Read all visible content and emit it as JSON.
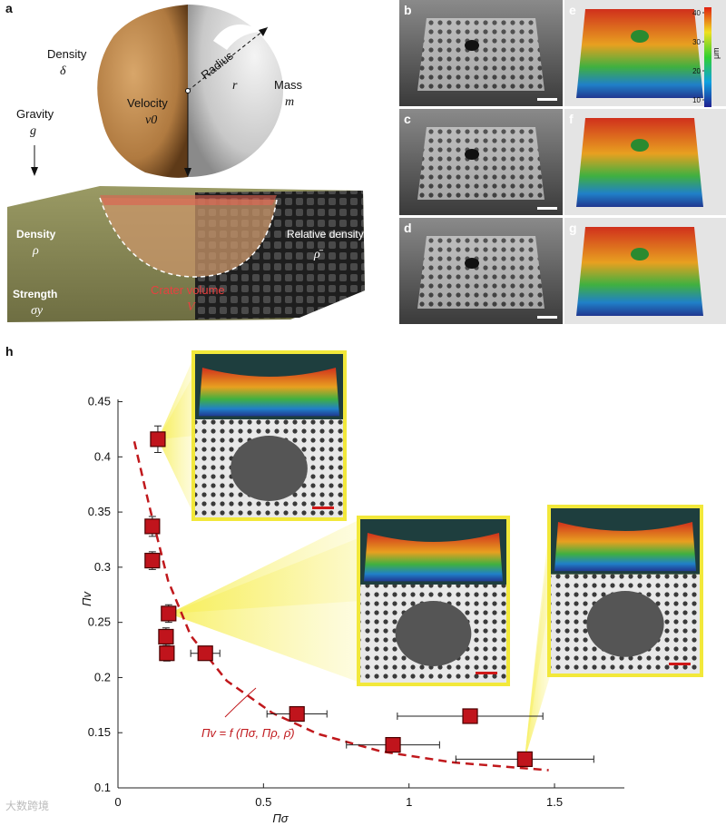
{
  "panels": {
    "a": "a",
    "b": "b",
    "c": "c",
    "d": "d",
    "e": "e",
    "f": "f",
    "g": "g",
    "h": "h"
  },
  "illustration": {
    "density_top": "Density",
    "delta": "δ",
    "velocity": "Velocity",
    "v0": "v0",
    "radius": "Radius",
    "r": "r",
    "mass": "Mass",
    "m": "m",
    "gravity": "Gravity",
    "g": "g",
    "density_bottom": "Density",
    "rho": "ρ",
    "strength": "Strength",
    "sigma_y": "σy",
    "relative_density": "Relative density",
    "rho_bar": "ρ̄",
    "crater_volume": "Crater volume",
    "V": "V"
  },
  "colorbar": {
    "unit": "μm",
    "ticks": [
      10,
      20,
      30,
      40
    ]
  },
  "watermark": "大数跨境",
  "chart_data": {
    "type": "scatter",
    "xlabel": "Πσ",
    "ylabel": "Πv",
    "xlim": [
      0,
      1.74
    ],
    "ylim": [
      0.1,
      0.485
    ],
    "xticks": [
      0,
      0.5,
      1,
      1.5
    ],
    "yticks": [
      0.1,
      0.15,
      0.2,
      0.25,
      0.3,
      0.35,
      0.4,
      0.45
    ],
    "series": [
      {
        "name": "Πv = f (Πσ, Πρ, ρ̄)",
        "color": "#c0181c",
        "style": "dashed",
        "x": [
          0.056,
          0.109,
          0.172,
          0.25,
          0.374,
          0.53,
          0.686,
          0.905,
          1.154,
          1.48
        ],
        "values": [
          0.414,
          0.354,
          0.288,
          0.238,
          0.197,
          0.168,
          0.149,
          0.133,
          0.123,
          0.116
        ]
      },
      {
        "color": "#c0141c",
        "x": [
          0.137,
          0.118,
          0.118,
          0.174,
          0.165,
          0.168,
          0.3,
          0.615,
          0.945,
          1.21,
          1.398
        ],
        "values": [
          0.416,
          0.337,
          0.306,
          0.258,
          0.237,
          0.222,
          0.222,
          0.167,
          0.139,
          0.165,
          0.126
        ],
        "xerr": [
          0.01,
          0.01,
          0.01,
          0.01,
          0.01,
          0.01,
          0.05,
          0.103,
          0.16,
          0.25,
          0.237
        ],
        "yerr": [
          0.012,
          0.009,
          0.008,
          0.008,
          0.008,
          0.007,
          0.006,
          0.004,
          0.004,
          0.004,
          0.004
        ]
      }
    ]
  }
}
